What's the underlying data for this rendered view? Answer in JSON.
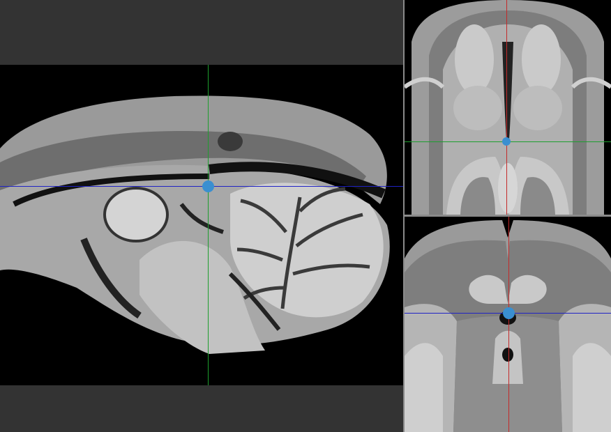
{
  "viewer": {
    "views": [
      {
        "name": "sagittal"
      },
      {
        "name": "axial"
      },
      {
        "name": "coronal"
      }
    ],
    "colors": {
      "background": "#333333",
      "divider": "#8a8a8a",
      "crosshair_horizontal": "#1f22c4",
      "crosshair_vertical_sagittal": "#1d9e2e",
      "crosshair_vertical_other": "#c42a2a",
      "cursor_marker": "#3a8fd0"
    }
  }
}
